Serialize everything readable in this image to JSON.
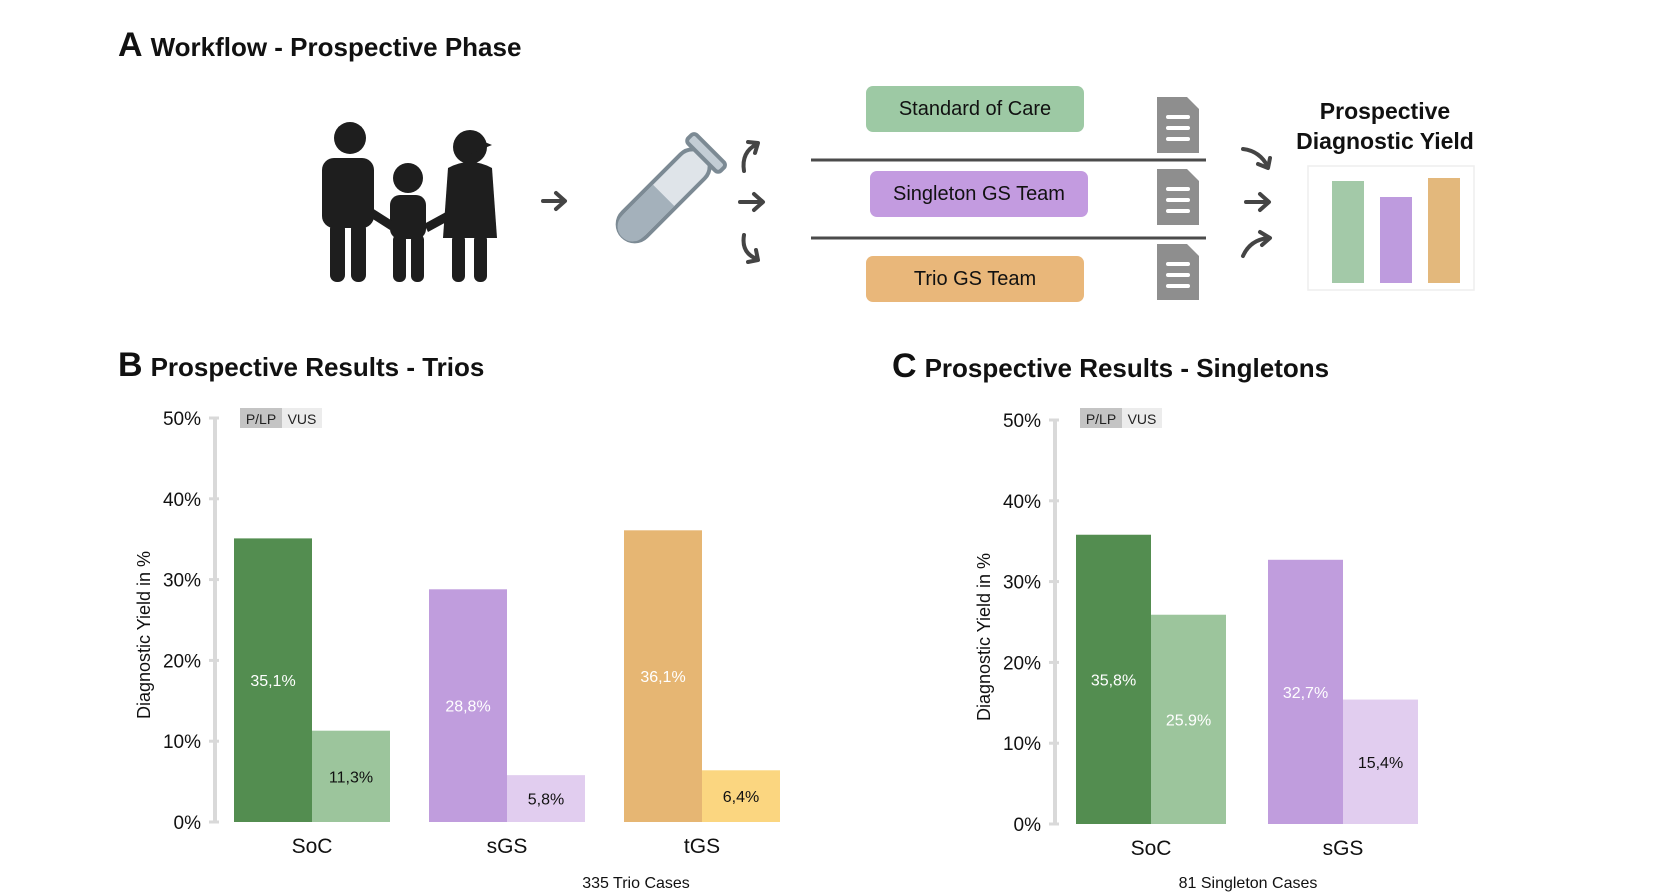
{
  "panel_a": {
    "letter": "A",
    "title": "Workflow - Prospective Phase",
    "boxes": [
      {
        "label": "Standard of Care",
        "color": "#9dc9a4"
      },
      {
        "label": "Singleton GS Team",
        "color": "#c39be0"
      },
      {
        "label": "Trio GS Team",
        "color": "#e9b77a"
      }
    ],
    "yield_title_line1": "Prospective",
    "yield_title_line2": "Diagnostic Yield",
    "mini_bar_colors": [
      "#a3c9a8",
      "#be9bde",
      "#e3b87c"
    ],
    "icons": [
      "family-icon",
      "test-tube-icon",
      "document-icon",
      "arrow-icon"
    ]
  },
  "panel_b": {
    "letter": "B",
    "title": "Prospective Results - Trios"
  },
  "panel_c": {
    "letter": "C",
    "title": "Prospective Results - Singletons"
  },
  "legend": {
    "plp": "P/LP",
    "vus": "VUS"
  },
  "chart_data": [
    {
      "type": "bar",
      "ylabel": "Diagnostic Yield in %",
      "xlabel": "335 Trio Cases",
      "ylim": [
        0,
        50
      ],
      "yticks": [
        "0%",
        "10%",
        "20%",
        "30%",
        "40%",
        "50%"
      ],
      "categories": [
        "SoC",
        "sGS",
        "tGS"
      ],
      "series": [
        {
          "name": "P/LP",
          "values": [
            35.1,
            28.8,
            36.1
          ],
          "labels": [
            "35,1%",
            "28,8%",
            "36,1%"
          ],
          "colors": [
            "#538d50",
            "#c09ddd",
            "#e6b673"
          ],
          "label_colors": [
            "#ffffff",
            "#ffffff",
            "#ffffff"
          ]
        },
        {
          "name": "VUS",
          "values": [
            11.3,
            5.8,
            6.4
          ],
          "labels": [
            "11,3%",
            "5,8%",
            "6,4%"
          ],
          "colors": [
            "#9cc59c",
            "#e1cdef",
            "#fbd680"
          ],
          "label_colors": [
            "#111111",
            "#111111",
            "#111111"
          ]
        }
      ]
    },
    {
      "type": "bar",
      "ylabel": "Diagnostic Yield in %",
      "xlabel": "81 Singleton Cases",
      "ylim": [
        0,
        50
      ],
      "yticks": [
        "0%",
        "10%",
        "20%",
        "30%",
        "40%",
        "50%"
      ],
      "categories": [
        "SoC",
        "sGS"
      ],
      "series": [
        {
          "name": "P/LP",
          "values": [
            35.8,
            32.7
          ],
          "labels": [
            "35,8%",
            "32,7%"
          ],
          "colors": [
            "#538d50",
            "#c09ddd"
          ],
          "label_colors": [
            "#ffffff",
            "#ffffff"
          ]
        },
        {
          "name": "VUS",
          "values": [
            25.9,
            15.4
          ],
          "labels": [
            "25.9%",
            "15,4%"
          ],
          "colors": [
            "#9cc59c",
            "#e1cdef"
          ],
          "label_colors": [
            "#ffffff",
            "#111111"
          ]
        }
      ]
    }
  ]
}
